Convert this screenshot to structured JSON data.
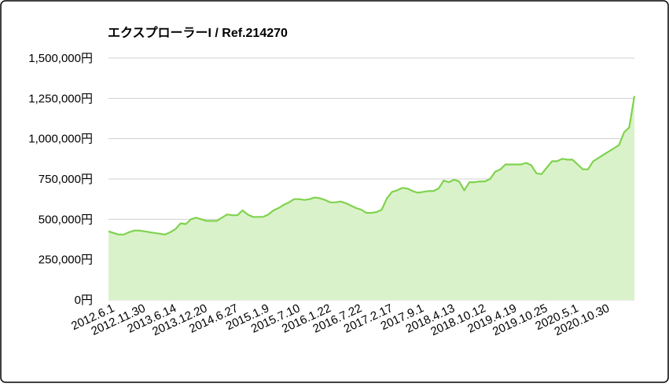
{
  "chart_data": {
    "type": "area",
    "title": "エクスプローラーI / Ref.214270",
    "categories": [
      null,
      "2012.6.1",
      null,
      null,
      null,
      null,
      null,
      "2012.11.30",
      null,
      null,
      null,
      null,
      null,
      "2013.6.14",
      null,
      null,
      null,
      null,
      null,
      "2013.12.20",
      null,
      null,
      null,
      null,
      null,
      "2014.6.27",
      null,
      null,
      null,
      null,
      null,
      "2015.1.9",
      null,
      null,
      null,
      null,
      null,
      "2015.7.10",
      null,
      null,
      null,
      null,
      null,
      "2016.1.22",
      null,
      null,
      null,
      null,
      null,
      "2016.7.22",
      null,
      null,
      null,
      null,
      null,
      "2017.2.17",
      null,
      null,
      null,
      null,
      null,
      "2017.9.1",
      null,
      null,
      null,
      null,
      null,
      "2018.4.13",
      null,
      null,
      null,
      null,
      null,
      "2018.10.12",
      null,
      null,
      null,
      null,
      null,
      "2019.4.19",
      null,
      null,
      null,
      null,
      null,
      "2019.10.25",
      null,
      null,
      null,
      null,
      null,
      "2020.5.1",
      null,
      null,
      null,
      null,
      null,
      "2020.10.30",
      null,
      null,
      null,
      null,
      null
    ],
    "values": [
      425000,
      415000,
      405000,
      405000,
      420000,
      430000,
      430000,
      425000,
      420000,
      415000,
      410000,
      405000,
      420000,
      440000,
      475000,
      470000,
      500000,
      510000,
      500000,
      490000,
      490000,
      490000,
      510000,
      530000,
      525000,
      525000,
      555000,
      530000,
      515000,
      515000,
      515000,
      530000,
      555000,
      570000,
      590000,
      605000,
      625000,
      625000,
      620000,
      625000,
      635000,
      630000,
      620000,
      605000,
      605000,
      610000,
      600000,
      585000,
      570000,
      560000,
      540000,
      540000,
      545000,
      560000,
      630000,
      670000,
      680000,
      695000,
      690000,
      675000,
      665000,
      670000,
      675000,
      675000,
      690000,
      740000,
      730000,
      745000,
      735000,
      680000,
      730000,
      730000,
      735000,
      735000,
      750000,
      795000,
      810000,
      840000,
      840000,
      840000,
      840000,
      850000,
      835000,
      785000,
      780000,
      820000,
      860000,
      860000,
      875000,
      870000,
      870000,
      840000,
      810000,
      810000,
      860000,
      880000,
      900000,
      920000,
      940000,
      960000,
      1040000,
      1070000,
      1265000
    ],
    "color": "#7fd34e",
    "fill": "#daf2c9",
    "ylim": [
      0,
      1500000
    ],
    "yticks": [
      {
        "value": 0,
        "label": "0円"
      },
      {
        "value": 250000,
        "label": "250,000円"
      },
      {
        "value": 500000,
        "label": "500,000円"
      },
      {
        "value": 750000,
        "label": "750,000円"
      },
      {
        "value": 1000000,
        "label": "1,000,000円"
      },
      {
        "value": 1250000,
        "label": "1,250,000円"
      },
      {
        "value": 1500000,
        "label": "1,500,000円"
      }
    ],
    "grid": true
  }
}
